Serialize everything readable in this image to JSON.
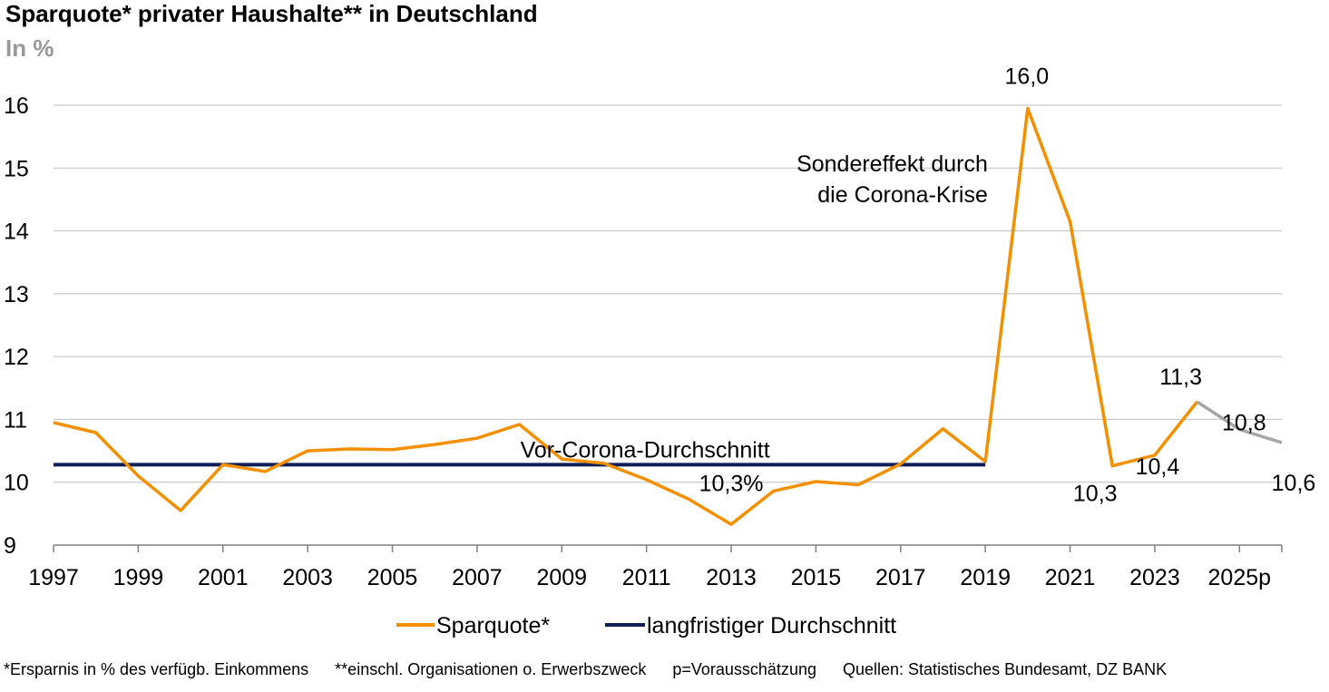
{
  "chart_data": {
    "type": "line",
    "title": "Sparquote* privater Haushalte** in Deutschland",
    "unit_label": "In %",
    "ylim": [
      9,
      16
    ],
    "yticks": [
      9,
      10,
      11,
      12,
      13,
      14,
      15,
      16
    ],
    "x": [
      "1997",
      "1998",
      "1999",
      "2000",
      "2001",
      "2002",
      "2003",
      "2004",
      "2005",
      "2006",
      "2007",
      "2008",
      "2009",
      "2010",
      "2011",
      "2012",
      "2013",
      "2014",
      "2015",
      "2016",
      "2017",
      "2018",
      "2019",
      "2020",
      "2021",
      "2022",
      "2023",
      "2024",
      "2025p",
      "2026p"
    ],
    "xtick_labels": [
      "1997",
      "1999",
      "2001",
      "2003",
      "2005",
      "2007",
      "2009",
      "2011",
      "2013",
      "2015",
      "2017",
      "2019",
      "2021",
      "2023",
      "2025p"
    ],
    "grid": true,
    "legend_position": "bottom",
    "series": [
      {
        "name": "Sparquote*",
        "color": "#F39000",
        "forecast_color": "#A6A6A6",
        "forecast_from_index": 27,
        "values": [
          10.95,
          10.79,
          10.1,
          9.55,
          10.28,
          10.17,
          10.5,
          10.53,
          10.52,
          10.6,
          10.7,
          10.92,
          10.37,
          10.3,
          10.04,
          9.73,
          9.33,
          9.86,
          10.01,
          9.96,
          10.29,
          10.85,
          10.33,
          15.95,
          14.15,
          10.26,
          10.43,
          11.28,
          10.84,
          10.63
        ]
      },
      {
        "name": "langfristiger Durchschnitt",
        "color": "#0F1E57",
        "value": 10.28,
        "x_start": "1997",
        "x_end": "2019"
      }
    ],
    "data_labels": [
      {
        "text": "16,0",
        "x": "2020",
        "value": 15.95
      },
      {
        "text": "10,3",
        "x": "2022",
        "value": 10.26
      },
      {
        "text": "10,4",
        "x": "2023",
        "value": 10.43
      },
      {
        "text": "11,3",
        "x": "2024",
        "value": 11.28
      },
      {
        "text": "10,8",
        "x": "2025p",
        "value": 10.84
      },
      {
        "text": "10,6",
        "x": "2026p",
        "value": 10.63
      }
    ],
    "annotations": [
      {
        "lines": [
          "Sondereffekt durch",
          "die Corona-Krise"
        ]
      },
      {
        "lines": [
          "Vor-Corona-Durchschnitt"
        ]
      },
      {
        "lines": [
          "10,3%"
        ]
      }
    ]
  },
  "footnotes": [
    "*Ersparnis in % des verfügb. Einkommens",
    "**einschl. Organisationen o. Erwerbszweck",
    "p=Vorausschätzung",
    "Quellen: Statistisches Bundesamt, DZ BANK"
  ]
}
